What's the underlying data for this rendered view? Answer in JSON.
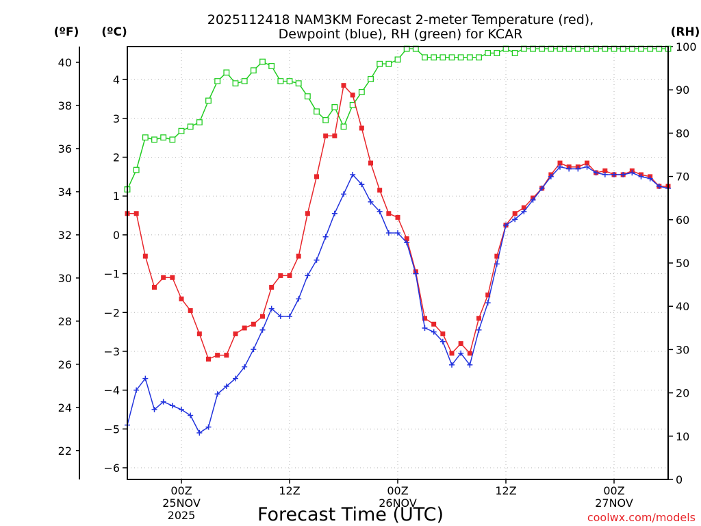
{
  "chart_data": {
    "type": "line",
    "title_line1": "2025112418 NAM3KM Forecast 2-meter Temperature (red),",
    "title_line2": "Dewpoint (blue), RH (green) for KCAR",
    "xlabel": "Forecast Time (UTC)",
    "credit": "coolwx.com/models",
    "unit_labels": {
      "fahrenheit": "(ºF)",
      "celsius": "(ºC)",
      "rh": "(RH)"
    },
    "x_unit": "hours after 2025-11-24 18Z",
    "xlim": [
      0,
      60
    ],
    "celsius_lim": [
      -6.3,
      4.85
    ],
    "fahrenheit_ticks": [
      22,
      24,
      26,
      28,
      30,
      32,
      34,
      36,
      38,
      40
    ],
    "celsius_ticks": [
      -6,
      -5,
      -4,
      -3,
      -2,
      -1,
      0,
      1,
      2,
      3,
      4
    ],
    "rh_lim": [
      0,
      100
    ],
    "rh_ticks": [
      0,
      10,
      20,
      30,
      40,
      50,
      60,
      70,
      80,
      90,
      100
    ],
    "x_ticks": [
      {
        "hour": 6,
        "lines": [
          "00Z",
          "25NOV",
          "2025"
        ]
      },
      {
        "hour": 18,
        "lines": [
          "12Z"
        ]
      },
      {
        "hour": 30,
        "lines": [
          "00Z",
          "26NOV"
        ]
      },
      {
        "hour": 42,
        "lines": [
          "12Z"
        ]
      },
      {
        "hour": 54,
        "lines": [
          "00Z",
          "27NOV"
        ]
      }
    ],
    "series": [
      {
        "name": "2-meter Temperature",
        "axis": "celsius",
        "color": "#e8262b",
        "marker": "filled-square",
        "values": [
          0.55,
          0.55,
          -0.55,
          -1.35,
          -1.1,
          -1.1,
          -1.65,
          -1.95,
          -2.55,
          -3.2,
          -3.1,
          -3.1,
          -2.55,
          -2.4,
          -2.3,
          -2.1,
          -1.35,
          -1.05,
          -1.05,
          -0.55,
          0.55,
          1.5,
          2.55,
          2.55,
          3.85,
          3.6,
          2.75,
          1.85,
          1.15,
          0.55,
          0.45,
          -0.1,
          -0.95,
          -2.15,
          -2.3,
          -2.55,
          -3.05,
          -2.8,
          -3.05,
          -2.15,
          -1.55,
          -0.55,
          0.25,
          0.55,
          0.7,
          0.95,
          1.2,
          1.55,
          1.85,
          1.75,
          1.75,
          1.85,
          1.6,
          1.65,
          1.55,
          1.55,
          1.65,
          1.55,
          1.5,
          1.25,
          1.25
        ]
      },
      {
        "name": "Dewpoint",
        "axis": "celsius",
        "color": "#2233dd",
        "marker": "plus",
        "values": [
          -4.9,
          -4.0,
          -3.7,
          -4.5,
          -4.3,
          -4.4,
          -4.5,
          -4.65,
          -5.1,
          -4.95,
          -4.1,
          -3.9,
          -3.7,
          -3.4,
          -2.95,
          -2.45,
          -1.9,
          -2.1,
          -2.1,
          -1.65,
          -1.05,
          -0.65,
          -0.05,
          0.55,
          1.05,
          1.55,
          1.3,
          0.85,
          0.6,
          0.05,
          0.05,
          -0.2,
          -1.0,
          -2.4,
          -2.5,
          -2.75,
          -3.35,
          -3.05,
          -3.35,
          -2.45,
          -1.75,
          -0.75,
          0.25,
          0.4,
          0.6,
          0.9,
          1.2,
          1.5,
          1.75,
          1.7,
          1.7,
          1.75,
          1.6,
          1.55,
          1.55,
          1.55,
          1.6,
          1.5,
          1.45,
          1.25,
          1.2
        ]
      },
      {
        "name": "RH",
        "axis": "rh",
        "color": "#22cc22",
        "marker": "open-square",
        "values": [
          67,
          71.5,
          79,
          78.5,
          79,
          78.5,
          80.5,
          81.5,
          82.5,
          87.5,
          92,
          94,
          91.5,
          92,
          94.5,
          96.5,
          95.5,
          92,
          92,
          91.5,
          88.5,
          85,
          83,
          86,
          81.5,
          86.5,
          89.5,
          92.5,
          96,
          96,
          97,
          99.5,
          99.5,
          97.5,
          97.5,
          97.5,
          97.5,
          97.5,
          97.5,
          97.5,
          98.5,
          98.5,
          99.5,
          98.5,
          99.5,
          99.5,
          99.5,
          99.5,
          99.5,
          99.5,
          99.5,
          99.5,
          99.5,
          99.5,
          99.5,
          99.5,
          99.5,
          99.5,
          99.5,
          99.5,
          99.5
        ]
      }
    ]
  }
}
